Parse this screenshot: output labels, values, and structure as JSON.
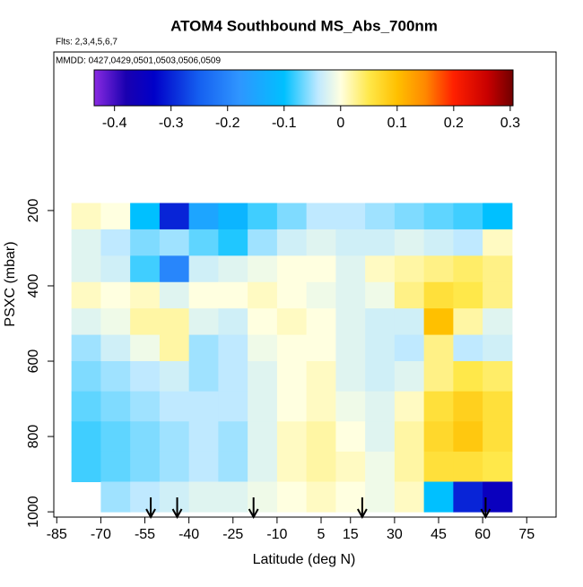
{
  "chart_data": {
    "type": "heatmap",
    "title": "ATOM4 Southbound MS_Abs_700nm",
    "subtitle": "Flts: 2,3,4,5,6,7",
    "annotation": "MMDD: 0427,0429,0501,0503,0506,0509",
    "x_label": "Latitude (deg N)",
    "y_label": "PSXC (mbar)",
    "xlim": [
      -86,
      85
    ],
    "xticks": [
      -85,
      -70,
      -55,
      -40,
      -25,
      -10,
      5,
      15,
      30,
      45,
      60,
      75
    ],
    "ylim": [
      -221,
      1014
    ],
    "yticks": [
      200,
      400,
      600,
      800,
      1000
    ],
    "y_reversed": true,
    "x_edges": [
      -80,
      -70,
      -60,
      -50,
      -40,
      -30,
      -20,
      -10,
      0,
      10,
      20,
      30,
      40,
      50,
      60,
      70
    ],
    "y_edges": [
      180,
      250,
      320,
      390,
      460,
      530,
      600,
      680,
      760,
      840,
      920,
      1000
    ],
    "values": [
      [
        0.01,
        0.0,
        -0.1,
        -0.3,
        -0.15,
        -0.12,
        -0.08,
        -0.06,
        -0.04,
        -0.04,
        -0.05,
        -0.06,
        -0.07,
        -0.08,
        -0.1
      ],
      [
        -0.02,
        -0.04,
        -0.06,
        -0.05,
        -0.07,
        -0.09,
        -0.05,
        -0.03,
        -0.02,
        -0.03,
        -0.03,
        -0.02,
        -0.03,
        -0.04,
        0.01
      ],
      [
        -0.02,
        -0.03,
        -0.08,
        -0.2,
        -0.03,
        -0.02,
        -0.01,
        0.0,
        0.0,
        -0.02,
        0.01,
        0.02,
        0.03,
        0.04,
        0.03
      ],
      [
        0.01,
        0.0,
        0.01,
        -0.02,
        0.0,
        0.0,
        0.01,
        0.0,
        -0.01,
        -0.02,
        -0.01,
        0.03,
        0.06,
        0.05,
        0.03
      ],
      [
        -0.02,
        -0.01,
        0.02,
        0.02,
        -0.02,
        -0.03,
        0.0,
        0.01,
        0.0,
        -0.02,
        -0.03,
        -0.03,
        0.1,
        0.02,
        -0.02
      ],
      [
        -0.05,
        -0.03,
        -0.01,
        0.02,
        -0.05,
        -0.04,
        -0.01,
        0.0,
        0.0,
        -0.02,
        -0.03,
        -0.04,
        0.03,
        -0.04,
        -0.03
      ],
      [
        -0.06,
        -0.05,
        -0.04,
        -0.03,
        -0.05,
        -0.04,
        -0.02,
        0.0,
        0.01,
        -0.02,
        -0.03,
        -0.02,
        0.03,
        0.05,
        0.04
      ],
      [
        -0.07,
        -0.06,
        -0.05,
        -0.04,
        -0.04,
        -0.04,
        -0.02,
        0.0,
        0.01,
        -0.01,
        -0.02,
        0.01,
        0.06,
        0.08,
        0.06
      ],
      [
        -0.08,
        -0.07,
        -0.06,
        -0.05,
        -0.04,
        -0.05,
        -0.02,
        0.01,
        0.02,
        0.0,
        -0.02,
        0.02,
        0.07,
        0.09,
        0.06
      ],
      [
        -0.08,
        -0.07,
        -0.06,
        -0.05,
        -0.04,
        -0.05,
        -0.02,
        0.01,
        0.02,
        0.01,
        -0.01,
        0.02,
        0.06,
        0.06,
        0.05
      ],
      [
        null,
        -0.05,
        -0.04,
        -0.03,
        -0.02,
        -0.02,
        -0.01,
        0.0,
        0.01,
        0.0,
        -0.01,
        0.01,
        -0.1,
        -0.3,
        -0.35
      ]
    ],
    "clim": [
      -0.436,
      0.305
    ],
    "cticks": [
      -0.4,
      -0.3,
      -0.2,
      -0.1,
      0.0,
      0.1,
      0.2,
      0.3
    ],
    "colorscale": [
      [
        -0.436,
        "#8a2be2"
      ],
      [
        -0.38,
        "#1a00b0"
      ],
      [
        -0.33,
        "#0000c8"
      ],
      [
        -0.25,
        "#1560f0"
      ],
      [
        -0.18,
        "#2f95ff"
      ],
      [
        -0.1,
        "#00c0ff"
      ],
      [
        -0.04,
        "#bfe9ff"
      ],
      [
        0.0,
        "#ffffe0"
      ],
      [
        0.05,
        "#ffe84a"
      ],
      [
        0.1,
        "#ffc000"
      ],
      [
        0.15,
        "#ff8800"
      ],
      [
        0.2,
        "#ff2000"
      ],
      [
        0.26,
        "#c80000"
      ],
      [
        0.305,
        "#700000"
      ]
    ],
    "arrows": [
      -53,
      -44,
      -18,
      19,
      61
    ]
  }
}
